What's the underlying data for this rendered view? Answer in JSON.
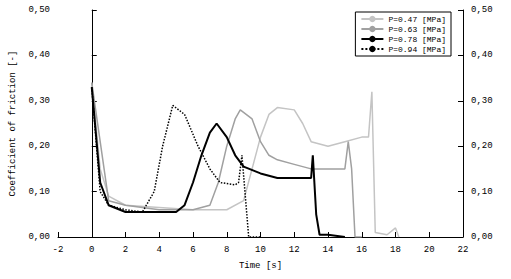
{
  "chart_data": {
    "type": "line",
    "x_label": "Time [s]",
    "y_label": "Coefficient of friction [-]",
    "xlim": [
      -2,
      22
    ],
    "xticks": [
      -2,
      0,
      2,
      4,
      6,
      8,
      10,
      12,
      14,
      16,
      18,
      20,
      22
    ],
    "ylim": [
      0,
      0.5
    ],
    "yticks": [
      {
        "value": 0,
        "label": "0,00"
      },
      {
        "value": 0.1,
        "label": "0,10"
      },
      {
        "value": 0.2,
        "label": "0,20"
      },
      {
        "value": 0.3,
        "label": "0,30"
      },
      {
        "value": 0.4,
        "label": "0,40"
      },
      {
        "value": 0.5,
        "label": "0,50"
      }
    ],
    "y2lim": [
      0,
      0.5
    ],
    "y2ticks": [
      {
        "value": 0,
        "label": "0,00"
      },
      {
        "value": 0.1,
        "label": "0,10"
      },
      {
        "value": 0.2,
        "label": "0,20"
      },
      {
        "value": 0.3,
        "label": "0,30"
      },
      {
        "value": 0.4,
        "label": "0,40"
      },
      {
        "value": 0.5,
        "label": "0,50"
      }
    ],
    "grid": false,
    "legend": "upper right",
    "series": [
      {
        "name": "P=0.47 [MPa]",
        "color": "#c4c4c4",
        "line_style": "solid",
        "x": [
          0,
          0.5,
          1,
          2,
          4,
          6,
          8,
          9,
          9.5,
          10,
          10.5,
          11,
          12,
          12.5,
          13,
          14,
          15,
          16,
          16.4,
          16.6,
          16.8,
          17.5,
          18,
          18.2
        ],
        "values": [
          0.34,
          0.15,
          0.09,
          0.07,
          0.065,
          0.06,
          0.06,
          0.08,
          0.15,
          0.22,
          0.27,
          0.285,
          0.28,
          0.25,
          0.21,
          0.2,
          0.21,
          0.22,
          0.22,
          0.32,
          0.01,
          0.005,
          0.02,
          0
        ]
      },
      {
        "name": "P=0.63 [MPa]",
        "color": "#a0a0a0",
        "line_style": "solid",
        "x": [
          0,
          1,
          2,
          4,
          6,
          7,
          7.5,
          8,
          8.5,
          8.8,
          9.5,
          10,
          10.5,
          11,
          12,
          13,
          14,
          15,
          15.2,
          15.4,
          15.6,
          16
        ],
        "values": [
          0.34,
          0.08,
          0.07,
          0.06,
          0.06,
          0.07,
          0.12,
          0.2,
          0.26,
          0.28,
          0.26,
          0.21,
          0.18,
          0.17,
          0.16,
          0.15,
          0.15,
          0.15,
          0.21,
          0.15,
          0,
          0
        ]
      },
      {
        "name": "P=0.78 [MPa]",
        "color": "#000000",
        "line_style": "solid",
        "x": [
          0,
          0.5,
          1,
          2,
          3,
          4,
          5,
          5.5,
          6,
          6.5,
          7,
          7.4,
          8,
          8.5,
          9,
          10,
          11,
          12,
          13,
          13.1,
          13.3,
          13.5,
          14,
          15
        ],
        "values": [
          0.33,
          0.12,
          0.07,
          0.055,
          0.055,
          0.055,
          0.055,
          0.07,
          0.12,
          0.18,
          0.23,
          0.25,
          0.22,
          0.18,
          0.155,
          0.14,
          0.13,
          0.13,
          0.13,
          0.18,
          0.05,
          0.005,
          0.005,
          0
        ]
      },
      {
        "name": "P=0.94 [MPa]",
        "color": "#000000",
        "line_style": "dotted",
        "x": [
          0,
          0.5,
          1,
          2,
          3,
          3.7,
          4.2,
          4.8,
          5.5,
          6.3,
          7,
          7.6,
          8.5,
          8.7,
          8.9,
          9.3,
          10
        ],
        "values": [
          0.33,
          0.1,
          0.07,
          0.06,
          0.055,
          0.1,
          0.2,
          0.29,
          0.27,
          0.2,
          0.15,
          0.12,
          0.115,
          0.12,
          0.18,
          0,
          0
        ]
      }
    ]
  }
}
